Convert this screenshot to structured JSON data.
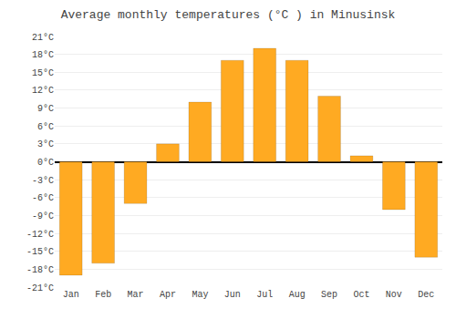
{
  "chart_data": {
    "type": "bar",
    "title": "Average monthly temperatures (°C ) in Minusinsk",
    "categories": [
      "Jan",
      "Feb",
      "Mar",
      "Apr",
      "May",
      "Jun",
      "Jul",
      "Aug",
      "Sep",
      "Oct",
      "Nov",
      "Dec"
    ],
    "values": [
      -19,
      -17,
      -7,
      3,
      10,
      17,
      19,
      17,
      11,
      1,
      -8,
      -16
    ],
    "color": "#FFAA22",
    "ylim": [
      -21,
      21
    ],
    "yticks": [
      {
        "value": -21,
        "label": "-21°C"
      },
      {
        "value": -18,
        "label": "-18°C"
      },
      {
        "value": -15,
        "label": "-15°C"
      },
      {
        "value": -12,
        "label": "-12°C"
      },
      {
        "value": -9,
        "label": "-9°C"
      },
      {
        "value": -6,
        "label": "-6°C"
      },
      {
        "value": -3,
        "label": "-3°C"
      },
      {
        "value": 0,
        "label": "0°C"
      },
      {
        "value": 3,
        "label": "3°C"
      },
      {
        "value": 6,
        "label": "6°C"
      },
      {
        "value": 9,
        "label": "9°C"
      },
      {
        "value": 12,
        "label": "12°C"
      },
      {
        "value": 15,
        "label": "15°C"
      },
      {
        "value": 18,
        "label": "18°C"
      },
      {
        "value": 21,
        "label": "21°C"
      }
    ],
    "grid": true
  }
}
